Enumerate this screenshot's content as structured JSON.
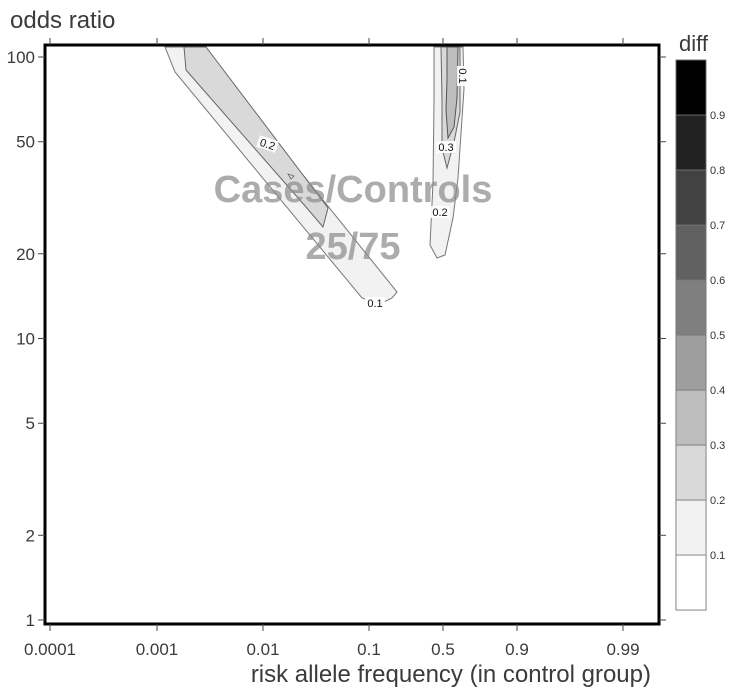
{
  "chart_data": {
    "type": "heatmap",
    "xlabel": "risk allele frequency (in control group)",
    "ylabel": "odds ratio",
    "x_ticks": [
      "0.0001",
      "0.001",
      "0.01",
      "0.1",
      "0.5",
      "0.9",
      "0.99"
    ],
    "y_ticks": [
      "1",
      "2",
      "5",
      "10",
      "20",
      "50",
      "100"
    ],
    "y_scale": "log",
    "ylim": [
      1,
      100
    ],
    "overlay": {
      "line1": "Cases/Controls",
      "line2": "25/75"
    },
    "legend": {
      "title": "diff",
      "levels": [
        "0.1",
        "0.2",
        "0.3",
        "0.4",
        "0.5",
        "0.6",
        "0.7",
        "0.8",
        "0.9"
      ],
      "colors": [
        "#ffffff",
        "#f2f2f2",
        "#d9d9d9",
        "#bdbdbd",
        "#9e9e9e",
        "#7f7f7f",
        "#616161",
        "#424242",
        "#222222",
        "#000000"
      ]
    },
    "contour_labels": [
      "0.2",
      "0.1",
      "0.3",
      "0.2",
      "0.1"
    ],
    "series": [
      {
        "region": "left band",
        "levels": [
          0.1,
          0.2
        ]
      },
      {
        "region": "right band",
        "levels": [
          0.1,
          0.2,
          0.3
        ]
      }
    ]
  }
}
